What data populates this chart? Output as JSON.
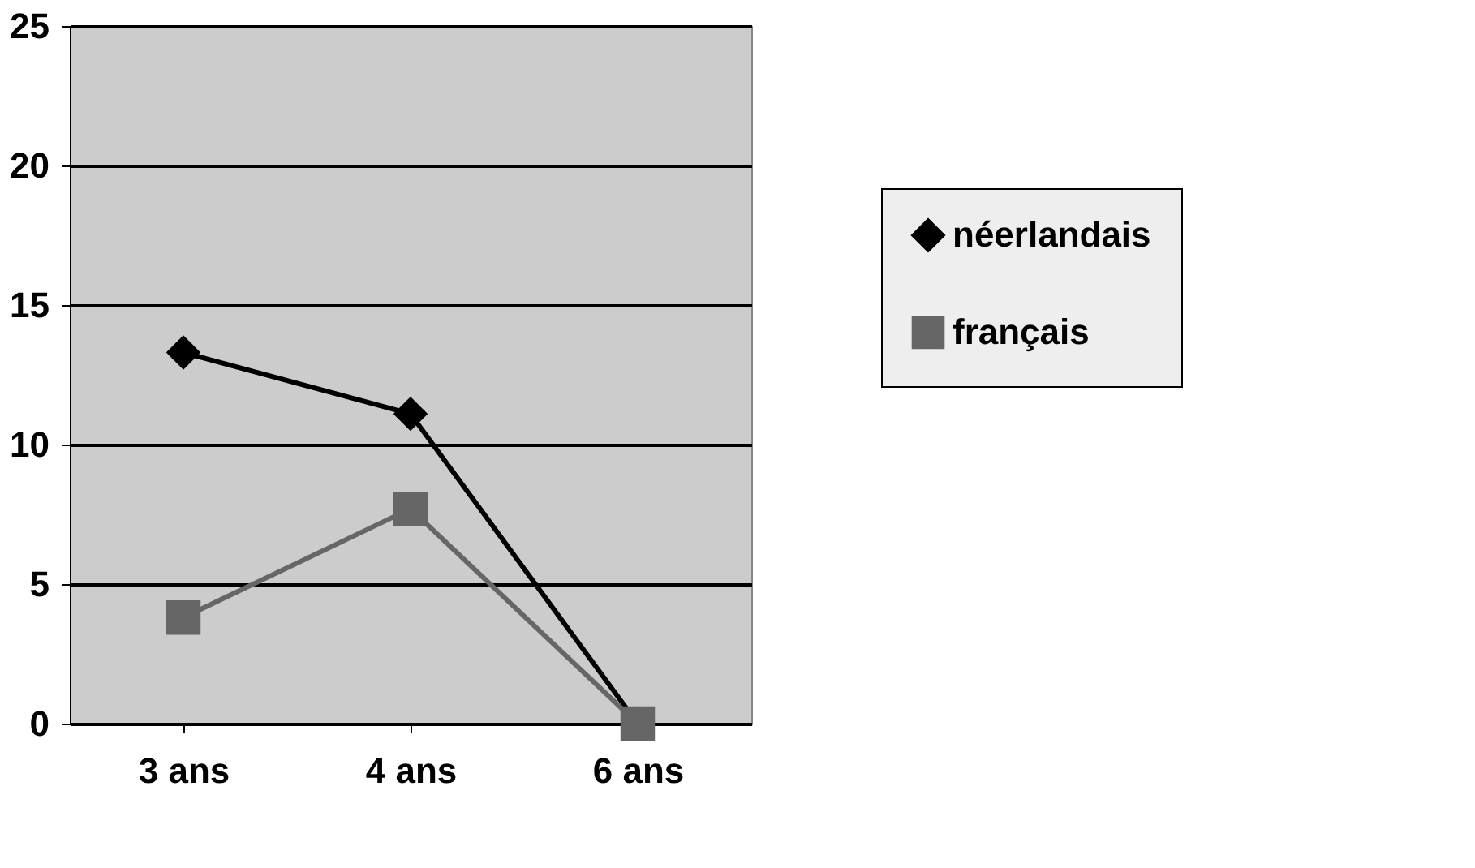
{
  "chart_data": {
    "type": "line",
    "categories": [
      "3 ans",
      "4 ans",
      "6 ans"
    ],
    "series": [
      {
        "name": "néerlandais",
        "color": "#000000",
        "values": [
          13.3,
          11.1,
          0
        ],
        "marker": "diamond"
      },
      {
        "name": "français",
        "color": "#666666",
        "values": [
          3.8,
          7.7,
          0
        ],
        "marker": "square"
      }
    ],
    "ylim": [
      0,
      25
    ],
    "yticks": [
      0,
      5,
      10,
      15,
      20,
      25
    ],
    "grid": "y",
    "legend": "right",
    "line_style": "solid"
  }
}
